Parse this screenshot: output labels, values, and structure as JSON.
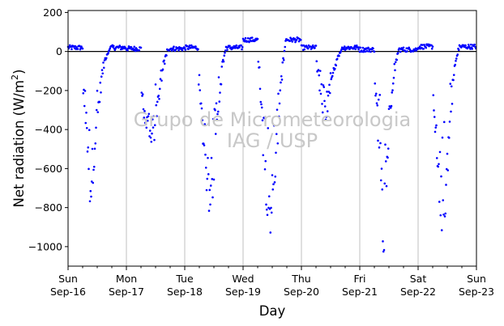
{
  "chart_data": {
    "type": "scatter",
    "ylabel_main": "Net radiation (W/m",
    "ylabel_sup": "2",
    "ylabel_close": ")",
    "xlabel": "Day",
    "watermark_line1": "Grupo de Micrometeorologia",
    "watermark_line2": "IAG / USP",
    "ylim": [
      -1100,
      210
    ],
    "y_ticks": [
      200,
      0,
      -200,
      -400,
      -600,
      -800,
      -1000
    ],
    "y_tick_labels": [
      "200",
      "0",
      "−200",
      "−400",
      "−600",
      "−800",
      "−1000"
    ],
    "x_range_days": [
      0,
      7
    ],
    "x_ticks": [
      {
        "day": 0,
        "dow": "Sun",
        "date": "Sep-16"
      },
      {
        "day": 1,
        "dow": "Mon",
        "date": "Sep-17"
      },
      {
        "day": 2,
        "dow": "Tue",
        "date": "Sep-18"
      },
      {
        "day": 3,
        "dow": "Wed",
        "date": "Sep-19"
      },
      {
        "day": 4,
        "dow": "Thu",
        "date": "Sep-20"
      },
      {
        "day": 5,
        "dow": "Fri",
        "date": "Sep-21"
      },
      {
        "day": 6,
        "dow": "Sat",
        "date": "Sep-22"
      },
      {
        "day": 7,
        "dow": "Sun",
        "date": "Sep-23"
      }
    ],
    "minor_ticks_per_day": 4,
    "vertical_grid": true,
    "zero_line": true,
    "marker_color": "#0000ff",
    "series": [
      {
        "days": [
          {
            "night": 20,
            "env": [
              [
                0.26,
                -200
              ],
              [
                0.29,
                -300
              ],
              [
                0.32,
                -420
              ],
              [
                0.35,
                -600
              ],
              [
                0.39,
                -700
              ],
              [
                0.44,
                -520
              ],
              [
                0.49,
                -350
              ],
              [
                0.53,
                -260
              ],
              [
                0.58,
                -120
              ],
              [
                0.64,
                -30
              ],
              [
                0.7,
                5
              ]
            ]
          },
          {
            "night": 15,
            "env": [
              [
                0.25,
                -170
              ],
              [
                0.3,
                -300
              ],
              [
                0.36,
                -380
              ],
              [
                0.42,
                -460
              ],
              [
                0.48,
                -380
              ],
              [
                0.55,
                -250
              ],
              [
                0.62,
                -100
              ],
              [
                0.7,
                5
              ]
            ]
          },
          {
            "night": 20,
            "env": [
              [
                0.23,
                -180
              ],
              [
                0.28,
                -300
              ],
              [
                0.33,
                -470
              ],
              [
                0.38,
                -620
              ],
              [
                0.43,
                -780
              ],
              [
                0.48,
                -640
              ],
              [
                0.53,
                -460
              ],
              [
                0.58,
                -280
              ],
              [
                0.64,
                -90
              ],
              [
                0.7,
                10
              ]
            ]
          },
          {
            "night": 60,
            "env": [
              [
                0.26,
                -60
              ],
              [
                0.3,
                -200
              ],
              [
                0.34,
                -430
              ],
              [
                0.38,
                -620
              ],
              [
                0.43,
                -740
              ],
              [
                0.47,
                -800
              ],
              [
                0.52,
                -720
              ],
              [
                0.57,
                -500
              ],
              [
                0.62,
                -300
              ],
              [
                0.67,
                -100
              ],
              [
                0.72,
                20
              ]
            ]
          },
          {
            "night": 20,
            "env": [
              [
                0.26,
                -60
              ],
              [
                0.3,
                -150
              ],
              [
                0.34,
                -240
              ],
              [
                0.38,
                -300
              ],
              [
                0.42,
                -330
              ],
              [
                0.46,
                -250
              ],
              [
                0.52,
                -150
              ],
              [
                0.6,
                -60
              ],
              [
                0.68,
                10
              ]
            ]
          },
          {
            "night": 10,
            "env": [
              [
                0.26,
                -150
              ],
              [
                0.3,
                -320
              ],
              [
                0.34,
                -520
              ],
              [
                0.38,
                -720
              ],
              [
                0.41,
                -940
              ],
              [
                0.44,
                -700
              ],
              [
                0.48,
                -520
              ],
              [
                0.53,
                -300
              ],
              [
                0.6,
                -100
              ],
              [
                0.67,
                10
              ]
            ]
          },
          {
            "night": 25,
            "env": [
              [
                0.25,
                -150
              ],
              [
                0.3,
                -400
              ],
              [
                0.35,
                -640
              ],
              [
                0.39,
                -770
              ],
              [
                0.43,
                -810
              ],
              [
                0.47,
                -740
              ],
              [
                0.51,
                -520
              ],
              [
                0.56,
                -300
              ],
              [
                0.62,
                -90
              ],
              [
                0.7,
                20
              ]
            ]
          }
        ]
      }
    ]
  }
}
